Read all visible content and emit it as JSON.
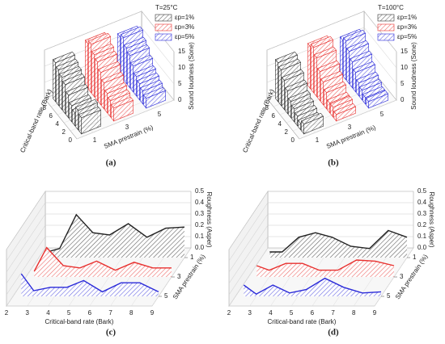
{
  "chart_data": [
    {
      "type": "bar3d",
      "caption": "(a)",
      "legend_title": "T=25°C",
      "xlabel": "Critical-band rate (Bark)",
      "zlabel": "SMA prestrain (%)",
      "ylabel": "Sound loudness (Sone)",
      "x": [
        1,
        2,
        3,
        4,
        5,
        6,
        7,
        8,
        9
      ],
      "series": [
        {
          "name": "εp=1%",
          "color": "#333333",
          "z": 1,
          "values": [
            5,
            6,
            4,
            5,
            7,
            9,
            10,
            11,
            12
          ]
        },
        {
          "name": "εp=3%",
          "color": "#e8312f",
          "z": 3,
          "values": [
            4,
            5,
            6,
            8,
            10,
            12,
            13,
            15,
            14
          ]
        },
        {
          "name": "εp=5%",
          "color": "#2b2bd9",
          "z": 5,
          "values": [
            3,
            4,
            5,
            6,
            8,
            10,
            11,
            13,
            12
          ]
        }
      ],
      "xlim": [
        0,
        10
      ],
      "xticks": [
        0,
        2,
        4,
        6,
        8
      ],
      "zlim": [
        0,
        6
      ],
      "zticks": [
        1,
        3,
        5
      ],
      "ylim": [
        0,
        15
      ],
      "yticks": [
        0,
        5,
        10,
        15
      ]
    },
    {
      "type": "bar3d",
      "caption": "(b)",
      "legend_title": "T=100°C",
      "xlabel": "Critical-band rate (Bark)",
      "zlabel": "SMA prestrain (%)",
      "ylabel": "Sound loudness (Sone)",
      "x": [
        1,
        2,
        3,
        4,
        5,
        6,
        7,
        8,
        9
      ],
      "series": [
        {
          "name": "εp=1%",
          "color": "#333333",
          "z": 1,
          "values": [
            3,
            2,
            3,
            4,
            5,
            7,
            9,
            11,
            12
          ]
        },
        {
          "name": "εp=3%",
          "color": "#e8312f",
          "z": 3,
          "values": [
            2,
            3,
            3,
            5,
            7,
            9,
            12,
            14,
            13
          ]
        },
        {
          "name": "εp=5%",
          "color": "#2b2bd9",
          "z": 5,
          "values": [
            2,
            2,
            3,
            4,
            6,
            8,
            10,
            12,
            11
          ]
        }
      ],
      "xlim": [
        0,
        10
      ],
      "xticks": [
        0,
        2,
        4,
        6,
        8
      ],
      "zlim": [
        0,
        6
      ],
      "zticks": [
        1,
        3,
        5
      ],
      "ylim": [
        0,
        15
      ],
      "yticks": [
        0,
        5,
        10,
        15
      ]
    },
    {
      "type": "waterfall",
      "caption": "(c)",
      "xlabel": "Critical-band rate (Bark)",
      "zlabel": "SMA prestrain (%)",
      "ylabel": "Roughness (Asper)",
      "x": [
        2.4,
        3.0,
        3.8,
        4.6,
        5.4,
        6.3,
        7.2,
        8.1,
        9.0
      ],
      "series": [
        {
          "color": "#222222",
          "z": 1,
          "values": [
            0.05,
            0.08,
            0.38,
            0.22,
            0.2,
            0.3,
            0.18,
            0.26,
            0.27
          ]
        },
        {
          "color": "#e8312f",
          "z": 3,
          "values": [
            0.05,
            0.26,
            0.1,
            0.08,
            0.14,
            0.06,
            0.13,
            0.08,
            0.08
          ]
        },
        {
          "color": "#2b2bd9",
          "z": 5,
          "values": [
            0.2,
            0.05,
            0.08,
            0.08,
            0.14,
            0.04,
            0.12,
            0.12,
            0.04
          ]
        }
      ],
      "xlim": [
        2,
        9
      ],
      "xticks": [
        2,
        3,
        4,
        5,
        6,
        7,
        8,
        9
      ],
      "zlim": [
        0,
        6
      ],
      "zticks": [
        1,
        3,
        5
      ],
      "ylim": [
        0,
        0.5
      ],
      "yticks": [
        {
          "value": 0,
          "label": "0.0"
        },
        0.1,
        0.2,
        0.3,
        0.4,
        0.5
      ]
    },
    {
      "type": "waterfall",
      "caption": "(d)",
      "xlabel": "Critical-band rate (Bark)",
      "zlabel": "SMA prestrain (%)",
      "ylabel": "Roughness (Asper)",
      "x": [
        2.4,
        3.0,
        3.8,
        4.6,
        5.4,
        6.3,
        7.2,
        8.1,
        9.0
      ],
      "series": [
        {
          "color": "#222222",
          "z": 1,
          "values": [
            0.05,
            0.05,
            0.18,
            0.22,
            0.18,
            0.1,
            0.08,
            0.24,
            0.18
          ]
        },
        {
          "color": "#e8312f",
          "z": 3,
          "values": [
            0.1,
            0.06,
            0.12,
            0.12,
            0.06,
            0.06,
            0.15,
            0.14,
            0.1
          ]
        },
        {
          "color": "#2b2bd9",
          "z": 5,
          "values": [
            0.1,
            0.02,
            0.1,
            0.03,
            0.06,
            0.16,
            0.08,
            0.03,
            0.04
          ]
        }
      ],
      "xlim": [
        2,
        9
      ],
      "xticks": [
        2,
        3,
        4,
        5,
        6,
        7,
        8,
        9
      ],
      "zlim": [
        0,
        6
      ],
      "zticks": [
        1,
        3,
        5
      ],
      "ylim": [
        0,
        0.5
      ],
      "yticks": [
        {
          "value": 0,
          "label": "0.0"
        },
        0.1,
        0.2,
        0.3,
        0.4,
        0.5
      ]
    }
  ]
}
